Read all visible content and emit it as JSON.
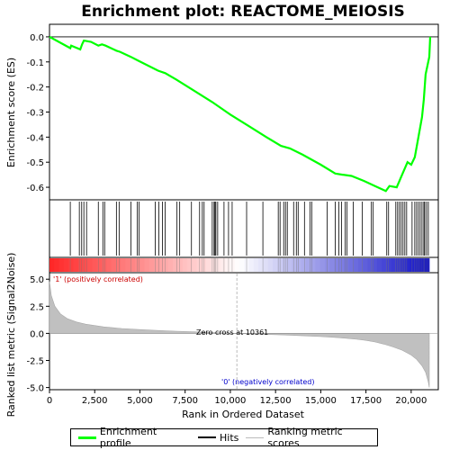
{
  "chart_data": {
    "type": "line",
    "title": "Enrichment plot: REACTOME_MEIOSIS",
    "xlabel": "Rank in Ordered Dataset",
    "es_ylabel": "Enrichment score (ES)",
    "metric_ylabel": "Ranked list metric (Signal2Noise)",
    "xlim": [
      0,
      21500
    ],
    "es_ylim": [
      -0.65,
      0.05
    ],
    "metric_ylim": [
      -5.2,
      5.6
    ],
    "x_ticks": [
      0,
      2500,
      5000,
      7500,
      10000,
      12500,
      15000,
      17500,
      20000
    ],
    "x_tick_labels": [
      "0",
      "2,500",
      "5,000",
      "7,500",
      "10,000",
      "12,500",
      "15,000",
      "17,500",
      "20,000"
    ],
    "es_ticks": [
      0.0,
      -0.1,
      -0.2,
      -0.3,
      -0.4,
      -0.5,
      -0.6
    ],
    "es_tick_labels": [
      "0.0",
      "-0.1",
      "-0.2",
      "-0.3",
      "-0.4",
      "-0.5",
      "-0.6"
    ],
    "metric_ticks": [
      5.0,
      2.5,
      0.0,
      -2.5,
      -5.0
    ],
    "metric_tick_labels": [
      "5.0",
      "2.5",
      "0.0",
      "-2.5",
      "-5.0"
    ],
    "colors": {
      "enrichment": "#00ff00",
      "hits": "#000000",
      "metric_fill": "#c0c0c0",
      "positive_label": "#cc0000",
      "negative_label": "#0000cc"
    },
    "series": [
      {
        "name": "Enrichment profile",
        "x": [
          0,
          1150,
          1200,
          1700,
          1800,
          1900,
          2300,
          2700,
          2900,
          3100,
          3700,
          3900,
          4500,
          4900,
          6000,
          6400,
          7000,
          8000,
          9000,
          10000,
          11000,
          12000,
          12800,
          13300,
          14000,
          15000,
          15800,
          16200,
          16700,
          17400,
          18000,
          18600,
          18800,
          19200,
          19500,
          19800,
          20000,
          20200,
          20400,
          20600,
          20700,
          20800,
          21000,
          21050
        ],
        "y": [
          0.0,
          -0.045,
          -0.035,
          -0.05,
          -0.03,
          -0.015,
          -0.02,
          -0.035,
          -0.03,
          -0.035,
          -0.055,
          -0.06,
          -0.08,
          -0.095,
          -0.135,
          -0.145,
          -0.17,
          -0.215,
          -0.26,
          -0.31,
          -0.355,
          -0.4,
          -0.435,
          -0.445,
          -0.47,
          -0.51,
          -0.545,
          -0.55,
          -0.555,
          -0.575,
          -0.595,
          -0.615,
          -0.595,
          -0.6,
          -0.55,
          -0.5,
          -0.51,
          -0.48,
          -0.4,
          -0.32,
          -0.25,
          -0.15,
          -0.08,
          0.0
        ]
      }
    ],
    "hits": [
      1150,
      1650,
      1780,
      1900,
      2050,
      2700,
      2950,
      3050,
      3700,
      3850,
      4500,
      4850,
      4950,
      5850,
      6050,
      6250,
      6400,
      7050,
      7200,
      7850,
      8300,
      8450,
      8550,
      9000,
      9100,
      9150,
      9200,
      9300,
      9650,
      9900,
      10100,
      10900,
      11800,
      12650,
      12750,
      12950,
      13050,
      13150,
      13500,
      13650,
      13750,
      14100,
      14400,
      14500,
      15350,
      15800,
      16000,
      16150,
      16350,
      16450,
      16800,
      17300,
      17800,
      17900,
      18650,
      18750,
      19150,
      19250,
      19350,
      19450,
      19550,
      19650,
      19750,
      20050,
      20200,
      20300,
      20400,
      20500,
      20600,
      20700,
      20750,
      20850,
      20950
    ],
    "metric": {
      "x": [
        0,
        100,
        300,
        600,
        1000,
        1500,
        2000,
        3000,
        4000,
        5000,
        6000,
        7000,
        8000,
        9000,
        10361,
        11000,
        12000,
        13000,
        14000,
        15000,
        16000,
        17000,
        17500,
        18000,
        18500,
        19000,
        19500,
        20000,
        20300,
        20600,
        20800,
        20950,
        21000
      ],
      "y": [
        4.8,
        3.5,
        2.5,
        1.8,
        1.35,
        1.05,
        0.85,
        0.6,
        0.45,
        0.35,
        0.27,
        0.2,
        0.14,
        0.08,
        0.0,
        -0.05,
        -0.1,
        -0.15,
        -0.22,
        -0.3,
        -0.4,
        -0.55,
        -0.65,
        -0.8,
        -1.0,
        -1.25,
        -1.55,
        -2.0,
        -2.4,
        -3.0,
        -3.6,
        -4.5,
        -5.0
      ]
    },
    "zero_cross_label": "Zero cross at 10361",
    "zero_cross": 10361,
    "positive_label": "'1' (positively correlated)",
    "negative_label": "'0' (negatively correlated)",
    "legend": [
      "Enrichment profile",
      "Hits",
      "Ranking metric scores"
    ]
  }
}
